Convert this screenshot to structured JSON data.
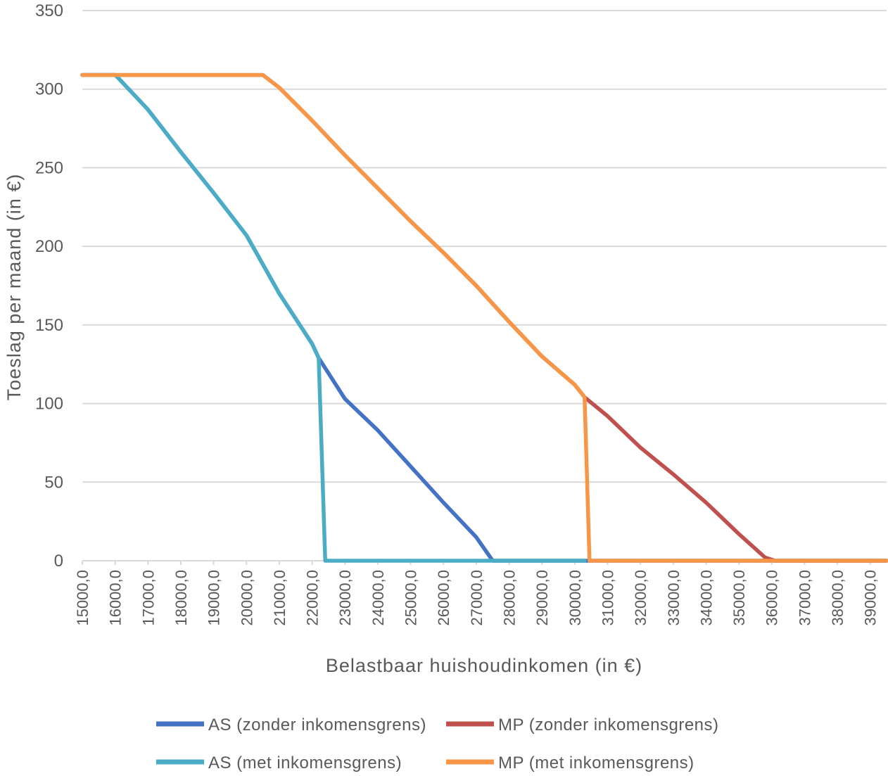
{
  "chart_data": {
    "type": "line",
    "title": "",
    "xlabel": "Belastbaar huishoudinkomen (in €)",
    "ylabel": "Toeslag per maand (in €)",
    "xlim": [
      15000,
      39500
    ],
    "ylim": [
      0,
      350
    ],
    "yticks": [
      0,
      50,
      100,
      150,
      200,
      250,
      300,
      350
    ],
    "xticks": [
      15000,
      16000,
      17000,
      18000,
      19000,
      20000,
      21000,
      22000,
      23000,
      24000,
      25000,
      26000,
      27000,
      28000,
      29000,
      30000,
      31000,
      32000,
      33000,
      34000,
      35000,
      36000,
      37000,
      38000,
      39000
    ],
    "xtick_labels": [
      "15000,0",
      "16000,0",
      "17000,0",
      "18000,0",
      "19000,0",
      "20000,0",
      "21000,0",
      "22000,0",
      "23000,0",
      "24000,0",
      "25000,0",
      "26000,0",
      "27000,0",
      "28000,0",
      "29000,0",
      "30000,0",
      "31000,0",
      "32000,0",
      "33000,0",
      "34000,0",
      "35000,0",
      "36000,0",
      "37000,0",
      "38000,0",
      "39000,0"
    ],
    "grid": true,
    "legend_position": "bottom",
    "series": [
      {
        "name": "AS (zonder inkomensgrens)",
        "color": "#4472C4",
        "x": [
          15000,
          16000,
          16100,
          17000,
          18000,
          19000,
          20000,
          21000,
          22000,
          22200,
          23000,
          24000,
          25000,
          26000,
          27000,
          27500,
          28000,
          30000,
          36000,
          39500
        ],
        "y": [
          309,
          309,
          307,
          287,
          260,
          234,
          207,
          170,
          138,
          129,
          103,
          83,
          60,
          37,
          15,
          0,
          0,
          0,
          0,
          0
        ]
      },
      {
        "name": "MP (zonder inkomensgrens)",
        "color": "#C0504D",
        "x": [
          15000,
          20500,
          21000,
          22000,
          23000,
          24000,
          25000,
          26000,
          27000,
          28000,
          29000,
          30000,
          30300,
          31000,
          32000,
          33000,
          34000,
          35000,
          35800,
          36100,
          39500
        ],
        "y": [
          309,
          309,
          301,
          280,
          258,
          237,
          216,
          196,
          175,
          152,
          130,
          112,
          104,
          92,
          72,
          55,
          37,
          17,
          2,
          0,
          0
        ]
      },
      {
        "name": "AS (met inkomensgrens)",
        "color": "#4BACC6",
        "x": [
          15000,
          16000,
          16100,
          17000,
          18000,
          19000,
          20000,
          21000,
          22000,
          22200,
          22400,
          23000,
          30300
        ],
        "y": [
          309,
          309,
          307,
          287,
          260,
          234,
          207,
          170,
          138,
          129,
          0,
          0,
          0
        ]
      },
      {
        "name": "MP (met inkomensgrens)",
        "color": "#F79646",
        "x": [
          15000,
          20500,
          21000,
          22000,
          23000,
          24000,
          25000,
          26000,
          27000,
          28000,
          29000,
          30000,
          30300,
          30450,
          31000,
          39500
        ],
        "y": [
          309,
          309,
          301,
          280,
          258,
          237,
          216,
          196,
          175,
          152,
          130,
          112,
          104,
          0,
          0,
          0
        ]
      }
    ]
  },
  "legend": {
    "items": [
      {
        "label": "AS (zonder inkomensgrens)",
        "color": "#4472C4"
      },
      {
        "label": "MP (zonder inkomensgrens)",
        "color": "#C0504D"
      },
      {
        "label": "AS (met inkomensgrens)",
        "color": "#4BACC6"
      },
      {
        "label": "MP (met inkomensgrens)",
        "color": "#F79646"
      }
    ]
  },
  "colors": {
    "grid": "#d9d9d9",
    "text": "#595959"
  }
}
